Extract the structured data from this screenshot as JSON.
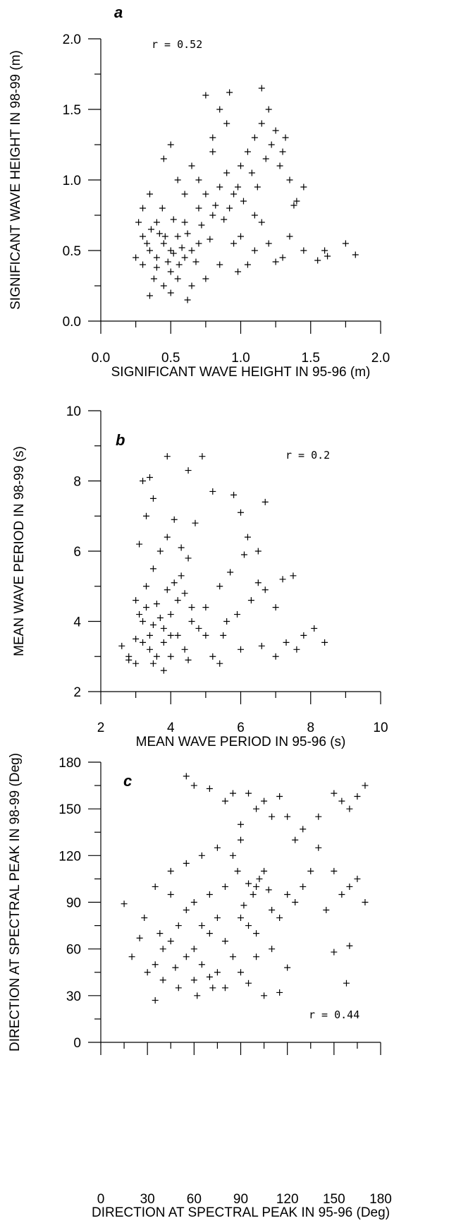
{
  "chart_data": [
    {
      "type": "scatter",
      "panel": "a",
      "annotation": "r = 0.52",
      "xlabel": "SIGNIFICANT WAVE HEIGHT IN 95-96 (m)",
      "ylabel": "SIGNIFICANT WAVE HEIGHT IN 98-99 (m)",
      "xlim": [
        0,
        2
      ],
      "ylim": [
        0,
        2
      ],
      "xticks": [
        "0.0",
        "0.5",
        "1.0",
        "1.5",
        "2.0"
      ],
      "yticks": [
        "0.0",
        "0.5",
        "1.0",
        "1.5",
        "2.0"
      ],
      "grid": false,
      "series": [
        {
          "values": [
            [
              0.3,
              0.6
            ],
            [
              0.35,
              0.5
            ],
            [
              0.4,
              0.45
            ],
            [
              0.45,
              0.55
            ],
            [
              0.5,
              0.5
            ],
            [
              0.55,
              0.6
            ],
            [
              0.6,
              0.45
            ],
            [
              0.4,
              0.7
            ],
            [
              0.5,
              0.35
            ],
            [
              0.3,
              0.4
            ],
            [
              0.38,
              0.3
            ],
            [
              0.45,
              0.25
            ],
            [
              0.55,
              0.3
            ],
            [
              0.6,
              0.7
            ],
            [
              0.65,
              0.5
            ],
            [
              0.7,
              0.55
            ],
            [
              0.7,
              0.8
            ],
            [
              0.75,
              0.9
            ],
            [
              0.8,
              0.75
            ],
            [
              0.85,
              0.95
            ],
            [
              0.9,
              1.05
            ],
            [
              0.95,
              0.9
            ],
            [
              1.0,
              1.1
            ],
            [
              1.05,
              1.2
            ],
            [
              1.1,
              1.3
            ],
            [
              1.15,
              1.4
            ],
            [
              1.2,
              1.5
            ],
            [
              1.25,
              1.35
            ],
            [
              1.3,
              1.2
            ],
            [
              1.35,
              1.0
            ],
            [
              0.8,
              1.3
            ],
            [
              0.85,
              1.5
            ],
            [
              0.75,
              1.6
            ],
            [
              0.9,
              1.4
            ],
            [
              1.15,
              1.65
            ],
            [
              0.92,
              1.62
            ],
            [
              0.3,
              0.8
            ],
            [
              0.35,
              0.9
            ],
            [
              0.45,
              1.15
            ],
            [
              0.5,
              1.25
            ],
            [
              0.55,
              1.0
            ],
            [
              0.65,
              1.1
            ],
            [
              1.0,
              0.6
            ],
            [
              1.1,
              0.5
            ],
            [
              1.2,
              0.55
            ],
            [
              1.3,
              0.45
            ],
            [
              1.45,
              0.5
            ],
            [
              1.6,
              0.5
            ],
            [
              1.75,
              0.55
            ],
            [
              1.82,
              0.47
            ],
            [
              1.4,
              0.85
            ],
            [
              1.45,
              0.95
            ],
            [
              1.35,
              0.6
            ],
            [
              1.1,
              0.75
            ],
            [
              0.95,
              0.55
            ],
            [
              0.85,
              0.4
            ],
            [
              0.75,
              0.3
            ],
            [
              0.65,
              0.25
            ],
            [
              0.35,
              0.18
            ],
            [
              0.5,
              0.2
            ],
            [
              0.62,
              0.15
            ],
            [
              0.25,
              0.45
            ],
            [
              0.27,
              0.7
            ],
            [
              0.33,
              0.55
            ],
            [
              0.42,
              0.62
            ],
            [
              0.48,
              0.42
            ],
            [
              0.52,
              0.72
            ],
            [
              0.58,
              0.52
            ],
            [
              0.62,
              0.62
            ],
            [
              0.68,
              0.42
            ],
            [
              0.72,
              0.68
            ],
            [
              0.78,
              0.58
            ],
            [
              0.82,
              0.82
            ],
            [
              0.88,
              0.72
            ],
            [
              0.92,
              0.8
            ],
            [
              0.98,
              0.95
            ],
            [
              1.02,
              0.85
            ],
            [
              1.08,
              1.05
            ],
            [
              1.12,
              0.95
            ],
            [
              1.18,
              1.15
            ],
            [
              1.22,
              1.25
            ],
            [
              1.28,
              1.1
            ],
            [
              1.32,
              1.3
            ],
            [
              1.38,
              0.82
            ],
            [
              0.8,
              1.2
            ],
            [
              0.7,
              1.0
            ],
            [
              0.6,
              0.9
            ],
            [
              0.4,
              0.38
            ],
            [
              0.46,
              0.6
            ],
            [
              0.52,
              0.48
            ],
            [
              0.56,
              0.4
            ],
            [
              0.36,
              0.65
            ],
            [
              0.44,
              0.8
            ],
            [
              1.62,
              0.46
            ],
            [
              1.55,
              0.43
            ],
            [
              1.25,
              0.42
            ],
            [
              1.15,
              0.7
            ],
            [
              1.05,
              0.4
            ],
            [
              0.98,
              0.35
            ]
          ]
        }
      ]
    },
    {
      "type": "scatter",
      "panel": "b",
      "annotation": "r = 0.2",
      "xlabel": "MEAN WAVE PERIOD IN 95-96 (s)",
      "ylabel": "MEAN WAVE PERIOD IN 98-99 (s)",
      "xlim": [
        2,
        10
      ],
      "ylim": [
        2,
        10
      ],
      "xticks": [
        "2",
        "4",
        "6",
        "8",
        "10"
      ],
      "yticks": [
        "2",
        "4",
        "6",
        "8",
        "10"
      ],
      "grid": false,
      "series": [
        {
          "values": [
            [
              2.6,
              3.3
            ],
            [
              2.8,
              2.9
            ],
            [
              3.0,
              3.5
            ],
            [
              3.2,
              4.0
            ],
            [
              3.4,
              3.2
            ],
            [
              3.6,
              4.5
            ],
            [
              3.8,
              3.8
            ],
            [
              4.0,
              4.2
            ],
            [
              4.2,
              3.6
            ],
            [
              4.4,
              4.8
            ],
            [
              3.0,
              4.6
            ],
            [
              3.3,
              5.0
            ],
            [
              3.5,
              5.5
            ],
            [
              3.7,
              6.0
            ],
            [
              3.9,
              6.4
            ],
            [
              3.1,
              6.2
            ],
            [
              3.3,
              7.0
            ],
            [
              3.5,
              7.5
            ],
            [
              3.2,
              8.0
            ],
            [
              3.4,
              8.1
            ],
            [
              3.9,
              8.7
            ],
            [
              4.5,
              8.3
            ],
            [
              4.9,
              8.7
            ],
            [
              4.7,
              6.8
            ],
            [
              5.2,
              7.7
            ],
            [
              5.8,
              7.6
            ],
            [
              6.0,
              7.1
            ],
            [
              6.2,
              6.4
            ],
            [
              6.7,
              7.4
            ],
            [
              6.5,
              6.0
            ],
            [
              6.1,
              5.9
            ],
            [
              5.7,
              5.4
            ],
            [
              5.4,
              5.0
            ],
            [
              5.0,
              4.4
            ],
            [
              4.6,
              4.0
            ],
            [
              5.5,
              3.6
            ],
            [
              6.0,
              3.2
            ],
            [
              6.6,
              3.3
            ],
            [
              7.0,
              3.0
            ],
            [
              7.3,
              3.4
            ],
            [
              7.6,
              3.2
            ],
            [
              7.8,
              3.6
            ],
            [
              8.1,
              3.8
            ],
            [
              8.4,
              3.4
            ],
            [
              7.5,
              5.3
            ],
            [
              7.2,
              5.2
            ],
            [
              7.0,
              4.4
            ],
            [
              6.7,
              4.9
            ],
            [
              6.5,
              5.1
            ],
            [
              6.3,
              4.6
            ],
            [
              5.9,
              4.2
            ],
            [
              5.6,
              4.0
            ],
            [
              5.2,
              3.0
            ],
            [
              5.4,
              2.8
            ],
            [
              4.5,
              2.9
            ],
            [
              4.0,
              3.0
            ],
            [
              3.5,
              2.8
            ],
            [
              3.8,
              2.6
            ],
            [
              2.8,
              3.0
            ],
            [
              3.0,
              2.8
            ],
            [
              3.2,
              3.4
            ],
            [
              3.4,
              3.6
            ],
            [
              3.6,
              3.0
            ],
            [
              3.8,
              3.4
            ],
            [
              4.0,
              3.6
            ],
            [
              4.2,
              4.6
            ],
            [
              4.4,
              3.2
            ],
            [
              4.6,
              4.4
            ],
            [
              4.8,
              3.8
            ],
            [
              5.0,
              3.6
            ],
            [
              3.1,
              4.2
            ],
            [
              3.3,
              4.4
            ],
            [
              3.5,
              3.9
            ],
            [
              3.7,
              4.1
            ],
            [
              3.9,
              4.9
            ],
            [
              4.1,
              5.1
            ],
            [
              4.3,
              5.3
            ],
            [
              4.5,
              5.8
            ],
            [
              4.1,
              6.9
            ],
            [
              4.3,
              6.1
            ]
          ]
        }
      ]
    },
    {
      "type": "scatter",
      "panel": "c",
      "annotation": "r = 0.44",
      "xlabel": "DIRECTION AT SPECTRAL PEAK IN 95-96 (Deg)",
      "ylabel": "DIRECTION AT SPECTRAL PEAK IN 98-99 (Deg)",
      "xlim": [
        0,
        180
      ],
      "ylim": [
        0,
        180
      ],
      "xticks": [
        "0",
        "30",
        "60",
        "90",
        "120",
        "150",
        "180"
      ],
      "yticks": [
        "0",
        "30",
        "60",
        "90",
        "120",
        "150",
        "180"
      ],
      "grid": false,
      "series": [
        {
          "values": [
            [
              15,
              89
            ],
            [
              35,
              27
            ],
            [
              55,
              171
            ],
            [
              60,
              165
            ],
            [
              70,
              163
            ],
            [
              100,
              100
            ],
            [
              102,
              105
            ],
            [
              98,
              95
            ],
            [
              105,
              110
            ],
            [
              95,
              102
            ],
            [
              108,
              98
            ],
            [
              100,
              150
            ],
            [
              105,
              155
            ],
            [
              95,
              160
            ],
            [
              110,
              145
            ],
            [
              90,
              140
            ],
            [
              155,
              155
            ],
            [
              160,
              150
            ],
            [
              150,
              160
            ],
            [
              165,
              158
            ],
            [
              170,
              165
            ],
            [
              160,
              100
            ],
            [
              155,
              95
            ],
            [
              165,
              105
            ],
            [
              150,
              110
            ],
            [
              170,
              90
            ],
            [
              145,
              85
            ],
            [
              160,
              62
            ],
            [
              158,
              38
            ],
            [
              150,
              58
            ],
            [
              60,
              60
            ],
            [
              70,
              70
            ],
            [
              80,
              65
            ],
            [
              50,
              75
            ],
            [
              65,
              50
            ],
            [
              75,
              45
            ],
            [
              85,
              55
            ],
            [
              90,
              80
            ],
            [
              55,
              85
            ],
            [
              45,
              95
            ],
            [
              40,
              60
            ],
            [
              35,
              50
            ],
            [
              30,
              45
            ],
            [
              25,
              67
            ],
            [
              20,
              55
            ],
            [
              28,
              80
            ],
            [
              35,
              100
            ],
            [
              45,
              110
            ],
            [
              55,
              115
            ],
            [
              65,
              120
            ],
            [
              75,
              125
            ],
            [
              85,
              120
            ],
            [
              90,
              130
            ],
            [
              70,
              42
            ],
            [
              80,
              35
            ],
            [
              95,
              38
            ],
            [
              105,
              30
            ],
            [
              115,
              32
            ],
            [
              120,
              48
            ],
            [
              110,
              60
            ],
            [
              100,
              70
            ],
            [
              115,
              80
            ],
            [
              125,
              90
            ],
            [
              130,
              100
            ],
            [
              135,
              110
            ],
            [
              140,
              125
            ],
            [
              125,
              130
            ],
            [
              120,
              145
            ],
            [
              85,
              160
            ],
            [
              80,
              155
            ],
            [
              115,
              158
            ],
            [
              130,
              137
            ],
            [
              140,
              145
            ],
            [
              60,
              40
            ],
            [
              50,
              35
            ],
            [
              40,
              40
            ],
            [
              38,
              70
            ],
            [
              45,
              65
            ],
            [
              60,
              90
            ],
            [
              70,
              95
            ],
            [
              80,
              100
            ],
            [
              88,
              110
            ],
            [
              92,
              88
            ],
            [
              95,
              75
            ],
            [
              110,
              85
            ],
            [
              120,
              95
            ],
            [
              75,
              80
            ],
            [
              65,
              75
            ],
            [
              55,
              55
            ],
            [
              48,
              48
            ],
            [
              62,
              30
            ],
            [
              72,
              35
            ],
            [
              90,
              45
            ],
            [
              100,
              55
            ]
          ]
        }
      ]
    }
  ]
}
